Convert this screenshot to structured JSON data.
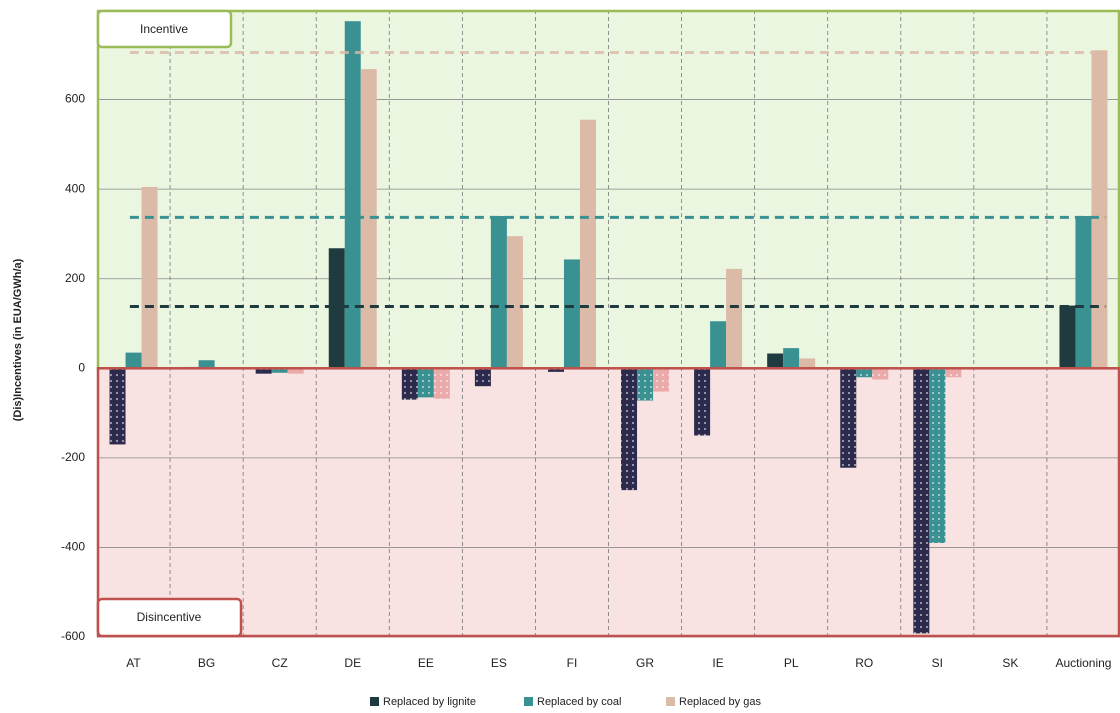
{
  "chart_data": {
    "type": "bar",
    "y_axis_label": "(Dis)Incentives (in EUA/GWh/a)",
    "annotations": [
      "Incentive",
      "Disincentive"
    ],
    "categories": [
      "AT",
      "BG",
      "CZ",
      "DE",
      "EE",
      "ES",
      "FI",
      "GR",
      "IE",
      "PL",
      "RO",
      "SI",
      "SK",
      "Auctioning"
    ],
    "series": [
      {
        "name": "Replaced by lignite",
        "color": "#1f3b3f",
        "negative_color": "#2c2b4d",
        "reference": 138,
        "values": [
          -170,
          3,
          -12,
          268,
          -70,
          -40,
          -8,
          -272,
          -150,
          33,
          -222,
          -592,
          0,
          140
        ]
      },
      {
        "name": "Replaced by coal",
        "color": "#3a9191",
        "negative_color": "#3a9191",
        "reference": 337,
        "values": [
          35,
          18,
          -10,
          775,
          -65,
          340,
          243,
          -72,
          105,
          45,
          -20,
          -390,
          0,
          340
        ]
      },
      {
        "name": "Replaced by gas",
        "color": "#dcbaa8",
        "negative_color": "#eaaaaa",
        "reference": 705,
        "values": [
          405,
          0,
          -12,
          668,
          -68,
          295,
          555,
          -52,
          222,
          22,
          -25,
          -20,
          0,
          710
        ]
      }
    ],
    "ylim": [
      -600,
      800
    ],
    "yticks": [
      -600,
      -400,
      -200,
      0,
      200,
      400,
      600
    ],
    "grid": true
  }
}
